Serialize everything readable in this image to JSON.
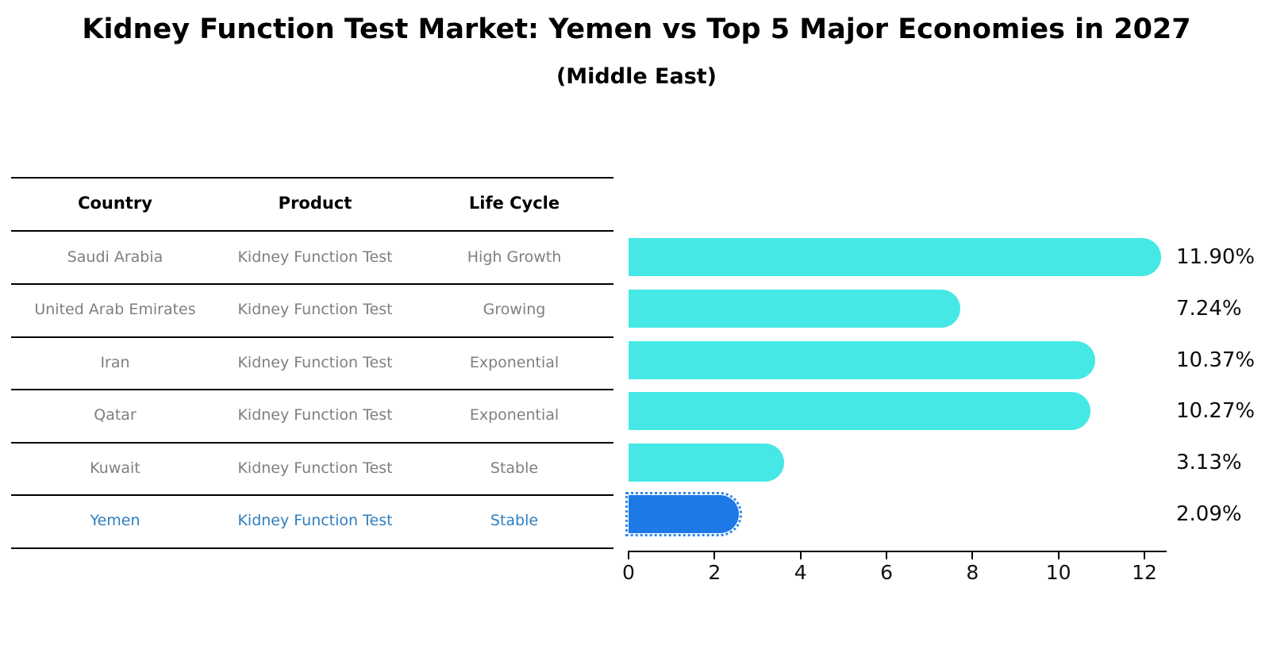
{
  "title": "Kidney Function Test Market: Yemen vs Top 5 Major Economies in 2027",
  "subtitle": "(Middle East)",
  "table": {
    "headers": {
      "country": "Country",
      "product": "Product",
      "life_cycle": "Life Cycle"
    },
    "rows": [
      {
        "country": "Saudi Arabia",
        "product": "Kidney Function Test",
        "life_cycle": "High Growth",
        "highlight": false
      },
      {
        "country": "United Arab Emirates",
        "product": "Kidney Function Test",
        "life_cycle": "Growing",
        "highlight": false
      },
      {
        "country": "Iran",
        "product": "Kidney Function Test",
        "life_cycle": "Exponential",
        "highlight": false
      },
      {
        "country": "Qatar",
        "product": "Kidney Function Test",
        "life_cycle": "Exponential",
        "highlight": false
      },
      {
        "country": "Kuwait",
        "product": "Kidney Function Test",
        "life_cycle": "Stable",
        "highlight": false
      },
      {
        "country": "Yemen",
        "product": "Kidney Function Test",
        "life_cycle": "Stable",
        "highlight": true
      }
    ]
  },
  "chart_data": {
    "type": "bar",
    "orientation": "horizontal",
    "title": "Kidney Function Test Market: Yemen vs Top 5 Major Economies in 2027 (Middle East)",
    "categories": [
      "Saudi Arabia",
      "United Arab Emirates",
      "Iran",
      "Qatar",
      "Kuwait",
      "Yemen"
    ],
    "values": [
      11.9,
      7.24,
      10.37,
      10.27,
      3.13,
      2.09
    ],
    "value_labels": [
      "11.90%",
      "7.24%",
      "10.37%",
      "10.27%",
      "3.13%",
      "2.09%"
    ],
    "xlabel": "",
    "ylabel": "",
    "xlim": [
      0,
      12.5
    ],
    "xticks": [
      0,
      2,
      4,
      6,
      8,
      10,
      12
    ],
    "grid": false,
    "legend": false,
    "highlight_index": 5
  },
  "colors": {
    "bar": "#45e8e4",
    "highlight_bar": "#1d79e6",
    "highlight_text": "#2e7ebf",
    "table_text": "#7f7f7f",
    "header_text": "#000000",
    "axis": "#000000"
  }
}
